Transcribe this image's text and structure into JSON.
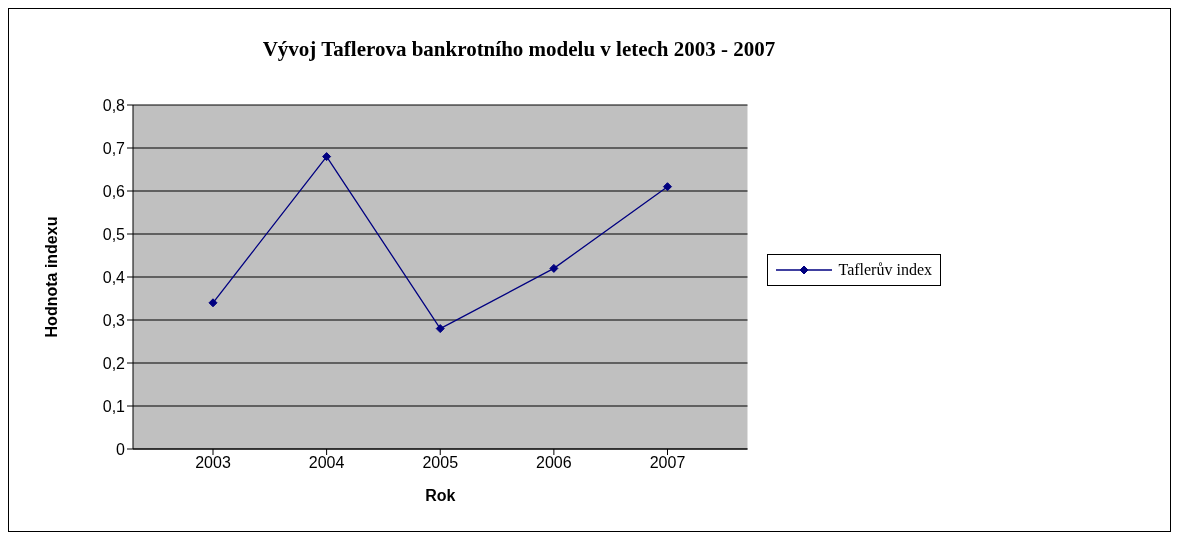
{
  "chart_data": {
    "type": "line",
    "title": "Vývoj Taflerova bankrotního modelu v letech 2003 - 2007",
    "xlabel": "Rok",
    "ylabel": "Hodnota indexu",
    "categories": [
      "2003",
      "2004",
      "2005",
      "2006",
      "2007"
    ],
    "series": [
      {
        "name": "Taflerův index",
        "color": "#000080",
        "values": [
          0.34,
          0.68,
          0.28,
          0.42,
          0.61
        ]
      }
    ],
    "ylim": [
      0,
      0.8
    ],
    "yticks": [
      0,
      {
        "value": 0.1,
        "label": "0,1"
      },
      {
        "value": 0.2,
        "label": "0,2"
      },
      {
        "value": 0.3,
        "label": "0,3"
      },
      {
        "value": 0.4,
        "label": "0,4"
      },
      {
        "value": 0.5,
        "label": "0,5"
      },
      {
        "value": 0.6,
        "label": "0,6"
      },
      {
        "value": 0.7,
        "label": "0,7"
      },
      {
        "value": 0.8,
        "label": "0,8"
      }
    ],
    "grid": "y",
    "legend": "right",
    "marker": "diamond",
    "line_style": "solid"
  }
}
